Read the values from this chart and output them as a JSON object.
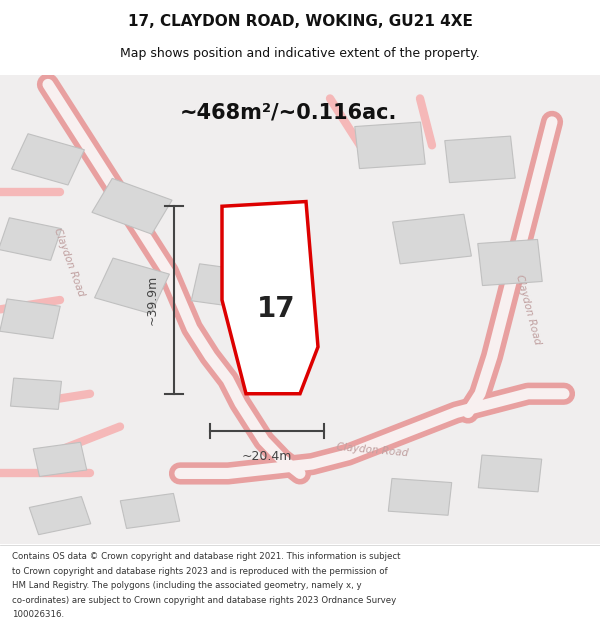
{
  "title_line1": "17, CLAYDON ROAD, WOKING, GU21 4XE",
  "title_line2": "Map shows position and indicative extent of the property.",
  "area_text": "~468m²/~0.116ac.",
  "dim_width": "~20.4m",
  "dim_height": "~39.9m",
  "property_number": "17",
  "footer_text": "Contains OS data © Crown copyright and database right 2021. This information is subject to Crown copyright and database rights 2023 and is reproduced with the permission of HM Land Registry. The polygons (including the associated geometry, namely x, y co-ordinates) are subject to Crown copyright and database rights 2023 Ordnance Survey 100026316.",
  "bg_color": "#f5f5f5",
  "map_bg": "#f0eeee",
  "road_color": "#f5b8b8",
  "building_color": "#d8d8d8",
  "building_edge": "#c0c0c0",
  "property_fill": "white",
  "property_edge": "#dd0000",
  "dim_color": "#444444",
  "text_color": "#333333",
  "road_label_color": "#c0a0a0",
  "title_color": "#111111"
}
